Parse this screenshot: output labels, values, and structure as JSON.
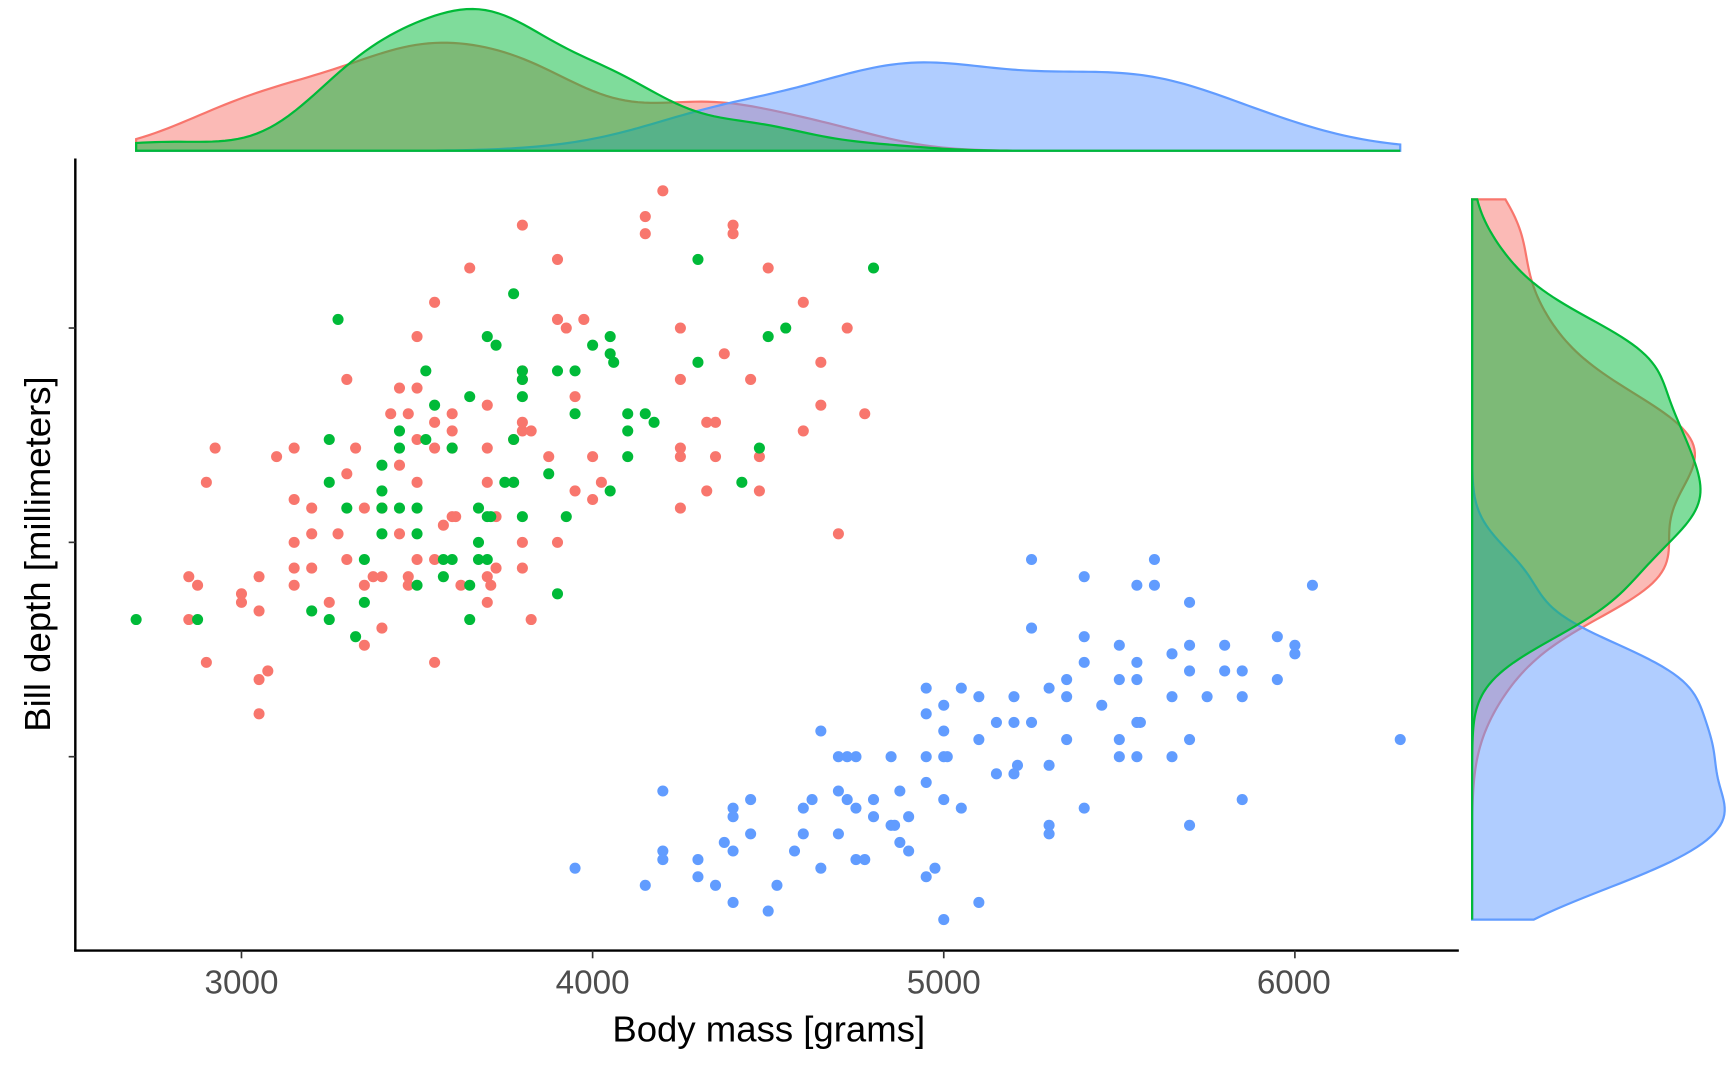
{
  "chart_data": {
    "type": "scatter",
    "title": "",
    "xlabel": "Body mass [grams]",
    "ylabel": "Bill depth [millimeters]",
    "xlim": [
      2700,
      6300
    ],
    "ylim": [
      13.1,
      21.5
    ],
    "x_ticks": [
      "3000",
      "4000",
      "5000",
      "6000"
    ],
    "x_tick_values": [
      3000,
      4000,
      5000,
      6000
    ],
    "y_tick_values": [
      15,
      17.5,
      20
    ],
    "y_tick_labels_shown": false,
    "grid": false,
    "legend": "none",
    "marginal": "density",
    "series": [
      {
        "color": "#F8766D",
        "points": [
          [
            4200,
            21.6
          ],
          [
            4150,
            21.3
          ],
          [
            4150,
            21.1
          ],
          [
            3800,
            21.2
          ],
          [
            4400,
            21.2
          ],
          [
            4400,
            21.1
          ],
          [
            3900,
            20.8
          ],
          [
            4500,
            20.7
          ],
          [
            3650,
            20.7
          ],
          [
            4600,
            20.3
          ],
          [
            3550,
            20.3
          ],
          [
            4725,
            20.0
          ],
          [
            3900,
            20.1
          ],
          [
            3925,
            20.0
          ],
          [
            3975,
            20.1
          ],
          [
            4250,
            20.0
          ],
          [
            3500,
            19.9
          ],
          [
            4375,
            19.7
          ],
          [
            4650,
            19.6
          ],
          [
            3800,
            19.5
          ],
          [
            4250,
            19.4
          ],
          [
            3300,
            19.4
          ],
          [
            4450,
            19.4
          ],
          [
            3450,
            19.3
          ],
          [
            3500,
            19.3
          ],
          [
            3800,
            19.4
          ],
          [
            3700,
            19.1
          ],
          [
            3950,
            19.2
          ],
          [
            4650,
            19.1
          ],
          [
            3425,
            19.0
          ],
          [
            3475,
            19.0
          ],
          [
            3600,
            19.0
          ],
          [
            4775,
            19.0
          ],
          [
            4600,
            18.8
          ],
          [
            4325,
            18.9
          ],
          [
            4350,
            18.9
          ],
          [
            3550,
            18.9
          ],
          [
            3800,
            18.8
          ],
          [
            3800,
            18.9
          ],
          [
            3825,
            18.8
          ],
          [
            3600,
            18.8
          ],
          [
            2925,
            18.6
          ],
          [
            3100,
            18.5
          ],
          [
            3150,
            18.6
          ],
          [
            3325,
            18.6
          ],
          [
            3500,
            18.7
          ],
          [
            3550,
            18.6
          ],
          [
            3600,
            18.6
          ],
          [
            3700,
            18.6
          ],
          [
            3775,
            18.7
          ],
          [
            3875,
            18.5
          ],
          [
            4000,
            18.5
          ],
          [
            4250,
            18.6
          ],
          [
            4250,
            18.5
          ],
          [
            4350,
            18.5
          ],
          [
            4475,
            18.5
          ],
          [
            2900,
            18.2
          ],
          [
            3150,
            18.0
          ],
          [
            3300,
            18.3
          ],
          [
            3450,
            18.4
          ],
          [
            3500,
            18.2
          ],
          [
            3700,
            18.2
          ],
          [
            3775,
            18.2
          ],
          [
            3950,
            18.1
          ],
          [
            4025,
            18.2
          ],
          [
            4325,
            18.1
          ],
          [
            4475,
            18.1
          ],
          [
            3200,
            17.9
          ],
          [
            3350,
            17.9
          ],
          [
            3400,
            17.9
          ],
          [
            3600,
            17.8
          ],
          [
            3610,
            17.8
          ],
          [
            3725,
            17.8
          ],
          [
            4000,
            18.0
          ],
          [
            4250,
            17.9
          ],
          [
            3150,
            17.5
          ],
          [
            3200,
            17.6
          ],
          [
            3275,
            17.6
          ],
          [
            3450,
            17.6
          ],
          [
            3575,
            17.7
          ],
          [
            4700,
            17.6
          ],
          [
            3800,
            17.5
          ],
          [
            3900,
            17.5
          ],
          [
            3300,
            17.3
          ],
          [
            3500,
            17.3
          ],
          [
            3550,
            17.3
          ],
          [
            3725,
            17.2
          ],
          [
            3800,
            17.2
          ],
          [
            3050,
            17.1
          ],
          [
            3150,
            17.2
          ],
          [
            3200,
            17.2
          ],
          [
            3400,
            17.1
          ],
          [
            3475,
            17.1
          ],
          [
            3700,
            17.1
          ],
          [
            3710,
            17.0
          ],
          [
            2850,
            17.1
          ],
          [
            2875,
            17.0
          ],
          [
            3150,
            17.0
          ],
          [
            3350,
            17.0
          ],
          [
            3375,
            17.1
          ],
          [
            3475,
            17.0
          ],
          [
            3625,
            17.0
          ],
          [
            3000,
            16.9
          ],
          [
            3000,
            16.8
          ],
          [
            3250,
            16.8
          ],
          [
            3700,
            16.8
          ],
          [
            3050,
            16.7
          ],
          [
            2850,
            16.6
          ],
          [
            3400,
            16.5
          ],
          [
            3825,
            16.6
          ],
          [
            2900,
            16.1
          ],
          [
            3550,
            16.1
          ],
          [
            3075,
            16.0
          ],
          [
            3050,
            15.9
          ],
          [
            3350,
            16.3
          ],
          [
            3050,
            15.5
          ]
        ]
      },
      {
        "color": "#00BA38",
        "points": [
          [
            4300,
            20.8
          ],
          [
            4800,
            20.7
          ],
          [
            3775,
            20.4
          ],
          [
            3275,
            20.1
          ],
          [
            3700,
            19.9
          ],
          [
            4050,
            19.9
          ],
          [
            4550,
            20.0
          ],
          [
            4500,
            19.9
          ],
          [
            3725,
            19.8
          ],
          [
            4000,
            19.8
          ],
          [
            4050,
            19.7
          ],
          [
            4060,
            19.6
          ],
          [
            4300,
            19.6
          ],
          [
            3800,
            19.5
          ],
          [
            3525,
            19.5
          ],
          [
            3900,
            19.5
          ],
          [
            3950,
            19.5
          ],
          [
            3800,
            19.4
          ],
          [
            3650,
            19.2
          ],
          [
            3550,
            19.1
          ],
          [
            3800,
            19.2
          ],
          [
            3950,
            19.0
          ],
          [
            4100,
            19.0
          ],
          [
            4150,
            19.0
          ],
          [
            4175,
            18.9
          ],
          [
            3450,
            18.8
          ],
          [
            3525,
            18.7
          ],
          [
            4100,
            18.8
          ],
          [
            3250,
            18.7
          ],
          [
            3450,
            18.6
          ],
          [
            3775,
            18.7
          ],
          [
            3600,
            18.6
          ],
          [
            4475,
            18.6
          ],
          [
            3400,
            18.4
          ],
          [
            4100,
            18.5
          ],
          [
            3875,
            18.3
          ],
          [
            3250,
            18.2
          ],
          [
            3750,
            18.2
          ],
          [
            3775,
            18.2
          ],
          [
            4425,
            18.2
          ],
          [
            4050,
            18.1
          ],
          [
            3400,
            18.1
          ],
          [
            3300,
            17.9
          ],
          [
            3400,
            17.9
          ],
          [
            3450,
            17.9
          ],
          [
            3500,
            17.9
          ],
          [
            3675,
            17.9
          ],
          [
            3700,
            17.8
          ],
          [
            3800,
            17.8
          ],
          [
            3925,
            17.8
          ],
          [
            3710,
            17.8
          ],
          [
            3400,
            17.6
          ],
          [
            3500,
            17.6
          ],
          [
            3675,
            17.5
          ],
          [
            3350,
            17.3
          ],
          [
            3575,
            17.3
          ],
          [
            3600,
            17.3
          ],
          [
            3675,
            17.3
          ],
          [
            3700,
            17.3
          ],
          [
            3575,
            17.1
          ],
          [
            3500,
            17.0
          ],
          [
            3650,
            17.0
          ],
          [
            3900,
            16.9
          ],
          [
            3350,
            16.8
          ],
          [
            3200,
            16.7
          ],
          [
            3250,
            16.6
          ],
          [
            2700,
            16.6
          ],
          [
            2875,
            16.6
          ],
          [
            3650,
            16.6
          ],
          [
            3325,
            16.4
          ]
        ]
      },
      {
        "color": "#619CFF",
        "points": [
          [
            5250,
            17.3
          ],
          [
            5400,
            17.1
          ],
          [
            5600,
            17.3
          ],
          [
            5550,
            17.0
          ],
          [
            5600,
            17.0
          ],
          [
            6050,
            17.0
          ],
          [
            5700,
            16.8
          ],
          [
            5250,
            16.5
          ],
          [
            5400,
            16.4
          ],
          [
            5500,
            16.3
          ],
          [
            5950,
            16.4
          ],
          [
            6000,
            16.3
          ],
          [
            6000,
            16.2
          ],
          [
            5700,
            16.3
          ],
          [
            5800,
            16.3
          ],
          [
            5650,
            16.2
          ],
          [
            5550,
            16.1
          ],
          [
            5400,
            16.1
          ],
          [
            5700,
            16.0
          ],
          [
            5800,
            16.0
          ],
          [
            5850,
            16.0
          ],
          [
            5950,
            15.9
          ],
          [
            5350,
            15.9
          ],
          [
            5500,
            15.9
          ],
          [
            5550,
            15.9
          ],
          [
            5300,
            15.8
          ],
          [
            4950,
            15.8
          ],
          [
            5050,
            15.8
          ],
          [
            5650,
            15.7
          ],
          [
            5750,
            15.7
          ],
          [
            5850,
            15.7
          ],
          [
            5350,
            15.7
          ],
          [
            5200,
            15.7
          ],
          [
            5100,
            15.7
          ],
          [
            5000,
            15.6
          ],
          [
            5450,
            15.6
          ],
          [
            4950,
            15.5
          ],
          [
            5150,
            15.4
          ],
          [
            5200,
            15.4
          ],
          [
            5250,
            15.4
          ],
          [
            5550,
            15.4
          ],
          [
            5560,
            15.4
          ],
          [
            5000,
            15.3
          ],
          [
            4650,
            15.3
          ],
          [
            5350,
            15.2
          ],
          [
            5100,
            15.2
          ],
          [
            5700,
            15.2
          ],
          [
            5500,
            15.2
          ],
          [
            6300,
            15.2
          ],
          [
            4850,
            15.0
          ],
          [
            4950,
            15.0
          ],
          [
            5000,
            15.0
          ],
          [
            5010,
            15.0
          ],
          [
            4750,
            15.0
          ],
          [
            4700,
            15.0
          ],
          [
            4725,
            15.0
          ],
          [
            5500,
            15.0
          ],
          [
            5550,
            15.0
          ],
          [
            5650,
            15.0
          ],
          [
            5300,
            14.9
          ],
          [
            5150,
            14.8
          ],
          [
            5200,
            14.8
          ],
          [
            5210,
            14.9
          ],
          [
            4950,
            14.7
          ],
          [
            4875,
            14.6
          ],
          [
            4700,
            14.6
          ],
          [
            4725,
            14.5
          ],
          [
            4800,
            14.5
          ],
          [
            4750,
            14.4
          ],
          [
            5000,
            14.5
          ],
          [
            5050,
            14.4
          ],
          [
            5400,
            14.4
          ],
          [
            5850,
            14.5
          ],
          [
            4200,
            14.6
          ],
          [
            4400,
            14.4
          ],
          [
            4450,
            14.5
          ],
          [
            4600,
            14.4
          ],
          [
            4625,
            14.5
          ],
          [
            4400,
            14.3
          ],
          [
            4800,
            14.3
          ],
          [
            4900,
            14.3
          ],
          [
            5300,
            14.2
          ],
          [
            5700,
            14.2
          ],
          [
            4600,
            14.1
          ],
          [
            4700,
            14.1
          ],
          [
            4850,
            14.2
          ],
          [
            4860,
            14.2
          ],
          [
            4450,
            14.1
          ],
          [
            4375,
            14.0
          ],
          [
            4575,
            13.9
          ],
          [
            5300,
            14.1
          ],
          [
            4875,
            14.0
          ],
          [
            4200,
            13.9
          ],
          [
            4400,
            13.9
          ],
          [
            4300,
            13.8
          ],
          [
            4900,
            13.9
          ],
          [
            4200,
            13.8
          ],
          [
            4650,
            13.7
          ],
          [
            4750,
            13.8
          ],
          [
            4775,
            13.8
          ],
          [
            3950,
            13.7
          ],
          [
            4300,
            13.6
          ],
          [
            4950,
            13.6
          ],
          [
            4975,
            13.7
          ],
          [
            4350,
            13.5
          ],
          [
            4150,
            13.5
          ],
          [
            4525,
            13.5
          ],
          [
            4400,
            13.3
          ],
          [
            5100,
            13.3
          ],
          [
            4500,
            13.2
          ],
          [
            5000,
            13.1
          ]
        ]
      }
    ]
  }
}
